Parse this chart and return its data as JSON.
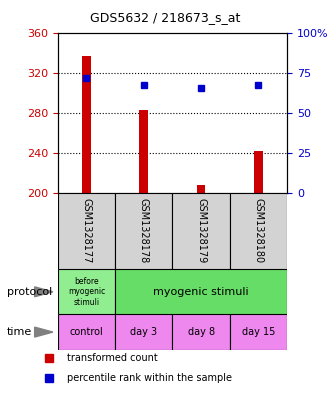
{
  "title": "GDS5632 / 218673_s_at",
  "samples": [
    "GSM1328177",
    "GSM1328178",
    "GSM1328179",
    "GSM1328180"
  ],
  "bar_values": [
    337,
    283,
    208,
    242
  ],
  "bar_base": 200,
  "dot_values": [
    315,
    308,
    305,
    308
  ],
  "ylim": [
    200,
    360
  ],
  "yticks_left": [
    200,
    240,
    280,
    320,
    360
  ],
  "yticks_right": [
    0,
    25,
    50,
    75,
    100
  ],
  "bar_color": "#cc0000",
  "dot_color": "#0000cc",
  "sample_bg_color": "#d3d3d3",
  "left_axis_color": "#cc0000",
  "right_axis_color": "#0000cc",
  "protocol_before_color": "#90ee90",
  "protocol_myo_color": "#66dd66",
  "time_color": "#ee88ee",
  "legend_red_label": "transformed count",
  "legend_blue_label": "percentile rank within the sample"
}
